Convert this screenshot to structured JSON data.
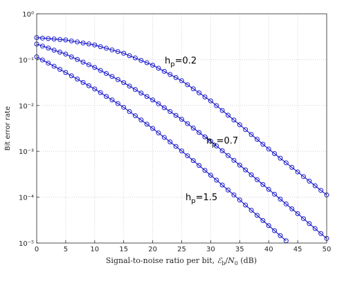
{
  "chart_data": {
    "type": "line",
    "y_label": "Bit error rate",
    "x_label": [
      "Signal-to-noise ratio per bit, ",
      "ℰ",
      "b",
      "/",
      "N",
      "0",
      " (dB)"
    ],
    "annotations": [
      {
        "base": "h",
        "sub": "p",
        "rest": "=0.2"
      },
      {
        "base": "h",
        "sub": "p",
        "rest": "=0.7"
      },
      {
        "base": "h",
        "sub": "p",
        "rest": "=1.5"
      }
    ],
    "log_y": true,
    "grid": true,
    "xlim": [
      0,
      50
    ],
    "xticks": [
      0,
      5,
      10,
      15,
      20,
      25,
      30,
      35,
      40,
      45,
      50
    ],
    "ylim": [
      1e-05,
      1
    ],
    "yticks": [
      {
        "value": 1e-05,
        "label": "10⁻⁵"
      },
      {
        "value": 0.0001,
        "label": "10⁻⁴"
      },
      {
        "value": 0.001,
        "label": "10⁻³"
      },
      {
        "value": 0.01,
        "label": "10⁻²"
      },
      {
        "value": 0.1,
        "label": "10⁻¹"
      },
      {
        "value": 1,
        "label": "10⁰"
      }
    ],
    "x": [
      0,
      1,
      2,
      3,
      4,
      5,
      6,
      7,
      8,
      9,
      10,
      11,
      12,
      13,
      14,
      15,
      16,
      17,
      18,
      19,
      20,
      21,
      22,
      23,
      24,
      25,
      26,
      27,
      28,
      29,
      30,
      31,
      32,
      33,
      34,
      35,
      36,
      37,
      38,
      39,
      40,
      41,
      42,
      43,
      44,
      45,
      46,
      47,
      48,
      49,
      50
    ],
    "series": [
      {
        "color": "#1a1acc",
        "values": [
          0.302,
          0.295,
          0.288,
          0.282,
          0.275,
          0.269,
          0.256,
          0.243,
          0.231,
          0.22,
          0.209,
          0.192,
          0.177,
          0.163,
          0.15,
          0.138,
          0.122,
          0.109,
          0.0964,
          0.0855,
          0.0759,
          0.0649,
          0.0555,
          0.0474,
          0.0406,
          0.0347,
          0.0283,
          0.0231,
          0.0189,
          0.0154,
          0.0126,
          0.00991,
          0.0078,
          0.00614,
          0.00483,
          0.0038,
          0.00298,
          0.00233,
          0.00183,
          0.00143,
          0.00112,
          0.000891,
          0.000708,
          0.000562,
          0.000447,
          0.000355,
          0.000282,
          0.000224,
          0.000178,
          0.000141,
          0.000112
        ]
      },
      {
        "color": "#1a1acc",
        "values": [
          0.219,
          0.198,
          0.179,
          0.161,
          0.146,
          0.132,
          0.115,
          0.101,
          0.0883,
          0.0773,
          0.0676,
          0.0581,
          0.0499,
          0.0429,
          0.0368,
          0.0316,
          0.0265,
          0.0223,
          0.0187,
          0.0157,
          0.0132,
          0.0109,
          0.00895,
          0.00738,
          0.00608,
          0.00501,
          0.00402,
          0.00322,
          0.00258,
          0.00207,
          0.00166,
          0.00131,
          0.00103,
          0.000809,
          0.000637,
          0.000501,
          0.000393,
          0.000308,
          0.000241,
          0.000189,
          0.000148,
          0.000116,
          9.08e-05,
          7.11e-05,
          5.57e-05,
          4.37e-05,
          3.4e-05,
          2.65e-05,
          2.07e-05,
          1.61e-05,
          1.26e-05
        ]
      },
      {
        "color": "#1a1acc",
        "values": [
          0.115,
          0.0982,
          0.0839,
          0.0718,
          0.0614,
          0.0525,
          0.0445,
          0.0377,
          0.0319,
          0.027,
          0.0229,
          0.0191,
          0.0158,
          0.0132,
          0.011,
          0.00912,
          0.00738,
          0.00597,
          0.00483,
          0.00391,
          0.00316,
          0.00252,
          0.00201,
          0.00161,
          0.00128,
          0.00102,
          0.000802,
          0.000628,
          0.000492,
          0.000385,
          0.000302,
          0.000236,
          0.000184,
          0.000143,
          0.000112,
          8.71e-05,
          6.73e-05,
          5.2e-05,
          4.02e-05,
          3.1e-05,
          2.4e-05,
          1.86e-05,
          1.45e-05,
          1.12e-05,
          null,
          null,
          null,
          null,
          null,
          null,
          null
        ]
      }
    ]
  }
}
